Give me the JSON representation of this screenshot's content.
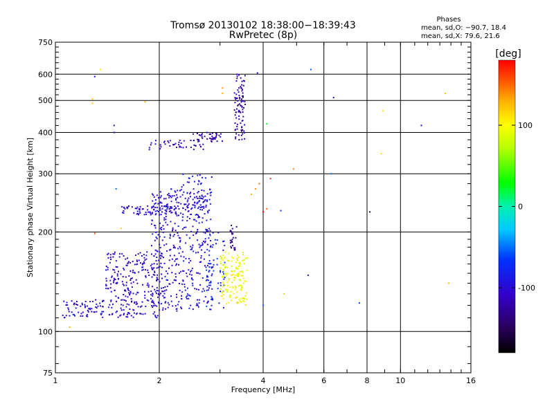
{
  "chart_data": {
    "type": "scatter",
    "title": "Tromsø 20130102 18:38:00−18:39:43",
    "subtitle": "RwPretec (8p)",
    "stats": {
      "heading": "Phases",
      "line1": "mean, sd,O: −90.7, 18.4",
      "line2": "mean, sd,X:  79.6, 21.6"
    },
    "xlabel": "Frequency [MHz]",
    "ylabel": "Stationary phase Virtual Height [km]",
    "x_scale": "log",
    "y_scale": "log",
    "xlim": [
      1,
      16
    ],
    "ylim": [
      75,
      750
    ],
    "x_ticks": [
      1,
      2,
      4,
      6,
      8,
      10,
      16
    ],
    "x_tick_labels": [
      "1",
      "2",
      "4",
      "6",
      "8",
      "10",
      "16"
    ],
    "y_ticks": [
      75,
      100,
      200,
      300,
      400,
      500,
      600,
      750
    ],
    "y_tick_labels": [
      "75",
      "100",
      "200",
      "300",
      "400",
      "500",
      "600",
      "750"
    ],
    "grid": true,
    "colorbar": {
      "label": "[deg]",
      "range": [
        -180,
        180
      ],
      "ticks": [
        -100,
        0,
        100
      ],
      "tick_labels": [
        "-100",
        "0",
        "100"
      ]
    },
    "point_clouds": [
      {
        "x_range": [
          1.05,
          1.4
        ],
        "y_range": [
          110,
          125
        ],
        "phase": -100,
        "count": 70
      },
      {
        "x_range": [
          1.4,
          2.0
        ],
        "y_range": [
          110,
          175
        ],
        "phase": -105,
        "count": 260
      },
      {
        "x_range": [
          1.9,
          2.3
        ],
        "y_range": [
          115,
          270
        ],
        "phase": -100,
        "count": 220
      },
      {
        "x_range": [
          2.3,
          2.85
        ],
        "y_range": [
          115,
          300
        ],
        "phase": -95,
        "count": 230
      },
      {
        "x_range": [
          2.7,
          3.1
        ],
        "y_range": [
          118,
          200
        ],
        "phase": -75,
        "count": 60
      },
      {
        "x_range": [
          3.0,
          3.6
        ],
        "y_range": [
          120,
          175
        ],
        "phase": 95,
        "count": 150
      },
      {
        "x_range": [
          1.55,
          2.25
        ],
        "y_range": [
          225,
          240
        ],
        "phase": -105,
        "count": 80
      },
      {
        "x_range": [
          2.3,
          2.8
        ],
        "y_range": [
          230,
          260
        ],
        "phase": -100,
        "count": 50
      },
      {
        "x_range": [
          1.85,
          2.7
        ],
        "y_range": [
          355,
          380
        ],
        "phase": -110,
        "count": 45
      },
      {
        "x_range": [
          2.5,
          3.05
        ],
        "y_range": [
          375,
          400
        ],
        "phase": -120,
        "count": 40
      },
      {
        "x_range": [
          3.3,
          3.55
        ],
        "y_range": [
          380,
          600
        ],
        "phase": -125,
        "count": 90
      },
      {
        "x_range": [
          3.2,
          3.35
        ],
        "y_range": [
          175,
          210
        ],
        "phase": -130,
        "count": 25
      }
    ],
    "scattered_points": [
      {
        "x": 1.3,
        "y": 590,
        "phase": -100
      },
      {
        "x": 1.35,
        "y": 620,
        "phase": 110
      },
      {
        "x": 1.28,
        "y": 505,
        "phase": 120
      },
      {
        "x": 1.28,
        "y": 490,
        "phase": 125
      },
      {
        "x": 1.48,
        "y": 420,
        "phase": -120
      },
      {
        "x": 1.48,
        "y": 400,
        "phase": -130
      },
      {
        "x": 1.82,
        "y": 495,
        "phase": 130
      },
      {
        "x": 3.05,
        "y": 545,
        "phase": 140
      },
      {
        "x": 3.05,
        "y": 525,
        "phase": 130
      },
      {
        "x": 3.85,
        "y": 605,
        "phase": -110
      },
      {
        "x": 5.5,
        "y": 620,
        "phase": -60
      },
      {
        "x": 6.4,
        "y": 510,
        "phase": -120
      },
      {
        "x": 11.5,
        "y": 420,
        "phase": -120
      },
      {
        "x": 8.9,
        "y": 465,
        "phase": 110
      },
      {
        "x": 8.8,
        "y": 345,
        "phase": 115
      },
      {
        "x": 13.5,
        "y": 525,
        "phase": 125
      },
      {
        "x": 4.1,
        "y": 425,
        "phase": 20
      },
      {
        "x": 4.9,
        "y": 310,
        "phase": 140
      },
      {
        "x": 4.2,
        "y": 290,
        "phase": 170
      },
      {
        "x": 6.3,
        "y": 300,
        "phase": -50
      },
      {
        "x": 3.9,
        "y": 280,
        "phase": 150
      },
      {
        "x": 3.8,
        "y": 270,
        "phase": 140
      },
      {
        "x": 3.7,
        "y": 260,
        "phase": 130
      },
      {
        "x": 4.1,
        "y": 235,
        "phase": 150
      },
      {
        "x": 4.0,
        "y": 230,
        "phase": 175
      },
      {
        "x": 4.5,
        "y": 232,
        "phase": -70
      },
      {
        "x": 8.15,
        "y": 230,
        "phase": -150
      },
      {
        "x": 1.3,
        "y": 198,
        "phase": 160
      },
      {
        "x": 1.5,
        "y": 270,
        "phase": -50
      },
      {
        "x": 1.55,
        "y": 205,
        "phase": 120
      },
      {
        "x": 5.4,
        "y": 148,
        "phase": -110
      },
      {
        "x": 7.6,
        "y": 122,
        "phase": -60
      },
      {
        "x": 4.0,
        "y": 120,
        "phase": -50
      },
      {
        "x": 4.6,
        "y": 130,
        "phase": 120
      },
      {
        "x": 13.8,
        "y": 140,
        "phase": 130
      },
      {
        "x": 1.1,
        "y": 103,
        "phase": 130
      }
    ]
  }
}
